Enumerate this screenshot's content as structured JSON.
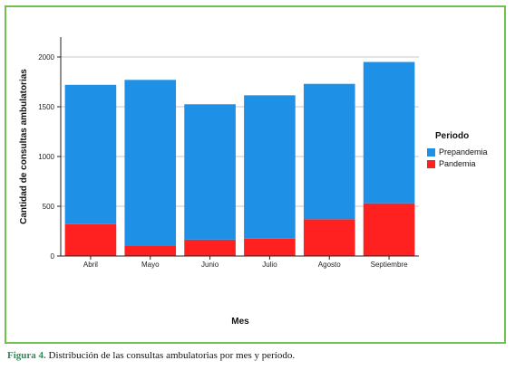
{
  "chart_data": {
    "type": "bar",
    "stacked": true,
    "categories": [
      "Abril",
      "Mayo",
      "Junio",
      "Julio",
      "Agosto",
      "Septiembre"
    ],
    "series": [
      {
        "name": "Pandemia",
        "color": "#ff2020",
        "values": [
          320,
          100,
          165,
          175,
          370,
          530
        ]
      },
      {
        "name": "Prepandemia",
        "color": "#1e90e6",
        "values": [
          1400,
          1670,
          1360,
          1440,
          1360,
          1420
        ]
      }
    ],
    "xlabel": "Mes",
    "ylabel": "Cantidad de consultas ambulatorias",
    "yticks": [
      "0",
      "500",
      "1000",
      "1500",
      "2000"
    ],
    "ylim": [
      0,
      2200
    ],
    "grid": true,
    "legend": {
      "title": "Periodo",
      "position": "right"
    }
  },
  "caption": {
    "label": "Figura 4.",
    "text": " Distribución de las consultas ambulatorias por mes y período."
  },
  "legend_order": [
    "Prepandemia",
    "Pandemia"
  ]
}
